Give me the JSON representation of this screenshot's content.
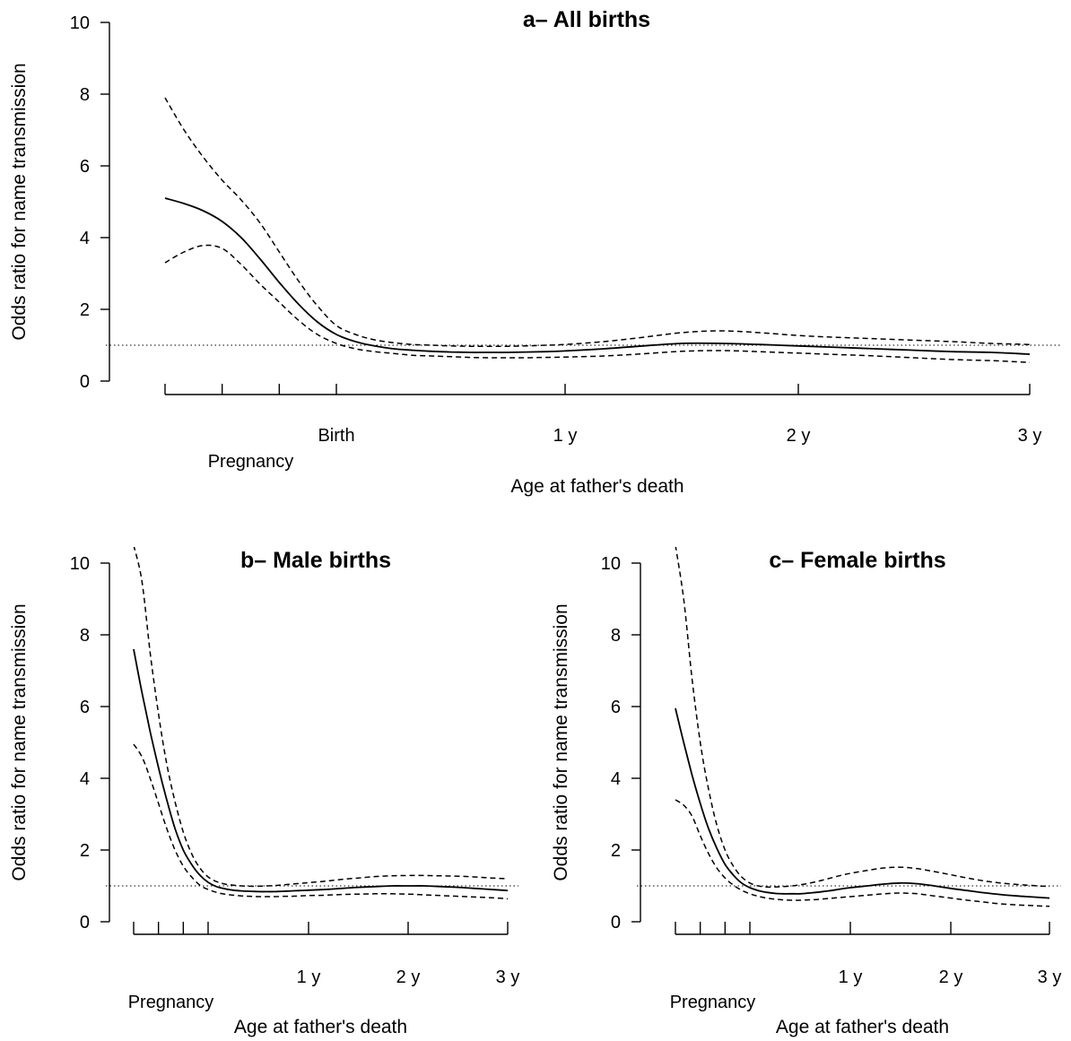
{
  "chart_data": [
    {
      "type": "line",
      "title": "a– All births",
      "xlabel": "Age at father's death",
      "ylabel": "Odds ratio for name transmission",
      "ylim": [
        0,
        10
      ],
      "yticks": [
        0,
        2,
        4,
        6,
        8,
        10
      ],
      "xlim": [
        -9,
        36
      ],
      "xticks": [
        -9,
        -6,
        -3,
        0,
        12,
        24,
        36
      ],
      "xtick_labels": [
        {
          "x": 0,
          "label": "Birth",
          "row": 1
        },
        {
          "x": 12,
          "label": "1 y",
          "row": 1
        },
        {
          "x": 24,
          "label": "2 y",
          "row": 1
        },
        {
          "x": 36,
          "label": "3 y",
          "row": 1
        },
        {
          "x": -4.5,
          "label": "Pregnancy",
          "row": 2
        }
      ],
      "reference_line": 1,
      "x": [
        -9,
        -8,
        -7,
        -6,
        -5,
        -4,
        -3,
        -2,
        -1,
        0,
        1,
        2,
        3,
        4,
        5,
        6,
        7,
        8,
        9,
        10,
        11,
        12,
        14,
        16,
        18,
        20,
        22,
        24,
        26,
        28,
        30,
        32,
        34,
        36
      ],
      "series": [
        {
          "style": "solid",
          "values": [
            5.1,
            4.95,
            4.75,
            4.45,
            4.0,
            3.4,
            2.75,
            2.15,
            1.65,
            1.3,
            1.1,
            0.98,
            0.9,
            0.86,
            0.83,
            0.81,
            0.8,
            0.8,
            0.8,
            0.81,
            0.82,
            0.84,
            0.9,
            0.98,
            1.05,
            1.05,
            1.02,
            0.98,
            0.94,
            0.9,
            0.86,
            0.82,
            0.8,
            0.75
          ]
        },
        {
          "style": "dashed",
          "values": [
            7.9,
            7.0,
            6.25,
            5.6,
            5.05,
            4.4,
            3.6,
            2.8,
            2.1,
            1.55,
            1.3,
            1.15,
            1.07,
            1.02,
            1.0,
            0.98,
            0.97,
            0.97,
            0.97,
            0.98,
            1.0,
            1.02,
            1.1,
            1.22,
            1.35,
            1.4,
            1.35,
            1.27,
            1.22,
            1.18,
            1.14,
            1.1,
            1.05,
            1.02
          ]
        },
        {
          "style": "dashed",
          "values": [
            3.3,
            3.6,
            3.78,
            3.7,
            3.25,
            2.7,
            2.2,
            1.7,
            1.3,
            1.05,
            0.9,
            0.82,
            0.77,
            0.72,
            0.7,
            0.68,
            0.66,
            0.65,
            0.65,
            0.65,
            0.66,
            0.67,
            0.7,
            0.76,
            0.83,
            0.85,
            0.82,
            0.78,
            0.74,
            0.7,
            0.65,
            0.6,
            0.57,
            0.52
          ]
        }
      ]
    },
    {
      "type": "line",
      "title": "b– Male births",
      "xlabel": "Age at father's death",
      "ylabel": "Odds ratio for name transmission",
      "ylim": [
        0,
        10
      ],
      "yticks": [
        0,
        2,
        4,
        6,
        8,
        10
      ],
      "xlim": [
        -9,
        36
      ],
      "xticks": [
        -9,
        -6,
        -3,
        0,
        12,
        24,
        36
      ],
      "xtick_labels": [
        {
          "x": 12,
          "label": "1 y",
          "row": 1
        },
        {
          "x": 24,
          "label": "2 y",
          "row": 1
        },
        {
          "x": 36,
          "label": "3 y",
          "row": 1
        },
        {
          "x": -4.5,
          "label": "Pregnancy",
          "row": 2
        }
      ],
      "reference_line": 1,
      "x": [
        -9,
        -8,
        -7,
        -6,
        -5,
        -4,
        -3,
        -2,
        -1,
        0,
        1,
        2,
        3,
        4,
        5,
        6,
        7,
        8,
        9,
        10,
        11,
        12,
        14,
        16,
        18,
        20,
        22,
        24,
        26,
        28,
        30,
        32,
        34,
        36
      ],
      "series": [
        {
          "style": "solid",
          "values": [
            7.6,
            6.4,
            5.3,
            4.3,
            3.4,
            2.6,
            2.0,
            1.6,
            1.3,
            1.1,
            0.98,
            0.92,
            0.88,
            0.86,
            0.85,
            0.84,
            0.84,
            0.84,
            0.85,
            0.86,
            0.87,
            0.88,
            0.9,
            0.93,
            0.96,
            0.98,
            1.0,
            1.0,
            1.0,
            0.98,
            0.96,
            0.93,
            0.9,
            0.87
          ]
        },
        {
          "style": "dashed",
          "values": [
            10.5,
            9.5,
            7.5,
            5.8,
            4.4,
            3.35,
            2.5,
            1.9,
            1.5,
            1.25,
            1.12,
            1.05,
            1.02,
            1.0,
            0.99,
            0.99,
            1.0,
            1.01,
            1.03,
            1.05,
            1.07,
            1.09,
            1.13,
            1.18,
            1.22,
            1.26,
            1.28,
            1.29,
            1.29,
            1.28,
            1.27,
            1.25,
            1.22,
            1.2
          ]
        },
        {
          "style": "dashed",
          "values": [
            4.95,
            4.6,
            4.0,
            3.3,
            2.6,
            2.0,
            1.55,
            1.25,
            1.02,
            0.9,
            0.82,
            0.77,
            0.74,
            0.72,
            0.71,
            0.7,
            0.7,
            0.7,
            0.71,
            0.71,
            0.72,
            0.73,
            0.74,
            0.76,
            0.77,
            0.78,
            0.78,
            0.77,
            0.75,
            0.73,
            0.71,
            0.69,
            0.67,
            0.64
          ]
        }
      ]
    },
    {
      "type": "line",
      "title": "c– Female births",
      "xlabel": "Age at father's death",
      "ylabel": "Odds ratio for name transmission",
      "ylim": [
        0,
        10
      ],
      "yticks": [
        0,
        2,
        4,
        6,
        8,
        10
      ],
      "xlim": [
        -9,
        36
      ],
      "xticks": [
        -9,
        -6,
        -3,
        0,
        12,
        24,
        36
      ],
      "xtick_labels": [
        {
          "x": 12,
          "label": "1 y",
          "row": 1
        },
        {
          "x": 24,
          "label": "2 y",
          "row": 1
        },
        {
          "x": 36,
          "label": "3 y",
          "row": 1
        },
        {
          "x": -4.5,
          "label": "Pregnancy",
          "row": 2
        }
      ],
      "reference_line": 1,
      "x": [
        -9,
        -8,
        -7,
        -6,
        -5,
        -4,
        -3,
        -2,
        -1,
        0,
        1,
        2,
        3,
        4,
        5,
        6,
        7,
        8,
        9,
        10,
        11,
        12,
        14,
        16,
        18,
        20,
        22,
        24,
        26,
        28,
        30,
        32,
        34,
        36
      ],
      "series": [
        {
          "style": "solid",
          "values": [
            5.95,
            5.0,
            4.1,
            3.3,
            2.6,
            2.05,
            1.6,
            1.3,
            1.08,
            0.95,
            0.87,
            0.82,
            0.79,
            0.78,
            0.78,
            0.78,
            0.8,
            0.82,
            0.85,
            0.88,
            0.92,
            0.95,
            1.0,
            1.05,
            1.08,
            1.06,
            1.0,
            0.93,
            0.87,
            0.81,
            0.76,
            0.72,
            0.69,
            0.66
          ]
        },
        {
          "style": "dashed",
          "values": [
            10.5,
            9.0,
            6.8,
            5.0,
            3.7,
            2.7,
            2.0,
            1.55,
            1.25,
            1.08,
            1.0,
            0.97,
            0.97,
            0.98,
            1.0,
            1.03,
            1.07,
            1.12,
            1.18,
            1.24,
            1.3,
            1.35,
            1.43,
            1.5,
            1.52,
            1.48,
            1.4,
            1.31,
            1.22,
            1.14,
            1.08,
            1.04,
            1.01,
            0.98
          ]
        },
        {
          "style": "dashed",
          "values": [
            3.4,
            3.25,
            2.95,
            2.4,
            1.9,
            1.5,
            1.22,
            1.02,
            0.88,
            0.78,
            0.71,
            0.66,
            0.63,
            0.61,
            0.6,
            0.6,
            0.61,
            0.62,
            0.64,
            0.66,
            0.68,
            0.7,
            0.74,
            0.78,
            0.8,
            0.78,
            0.72,
            0.66,
            0.6,
            0.55,
            0.5,
            0.47,
            0.45,
            0.43
          ]
        }
      ]
    }
  ]
}
